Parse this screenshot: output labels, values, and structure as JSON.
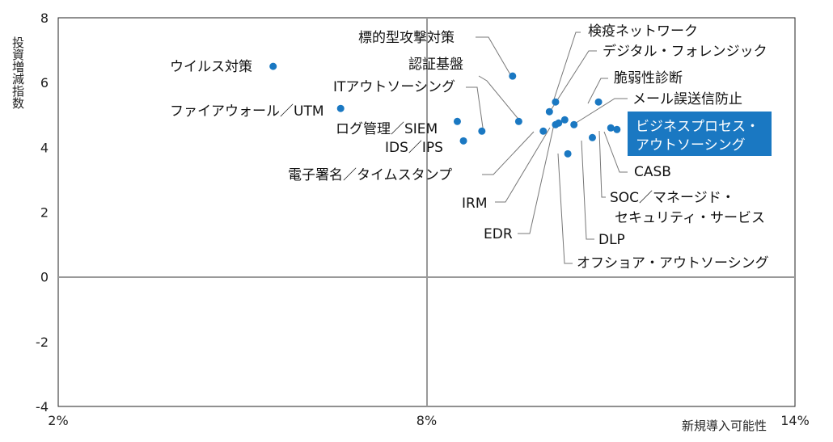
{
  "chart_data": {
    "type": "scatter",
    "xlabel": "新規導入可能性",
    "ylabel": "投資増減指数",
    "xlim": [
      2,
      14
    ],
    "ylim": [
      -4,
      8
    ],
    "x_ticks": [
      "2%",
      "8%",
      "14%"
    ],
    "y_ticks": [
      "-4",
      "-2",
      "0",
      "2",
      "4",
      "6",
      "8"
    ],
    "grid": false,
    "point_color": "#1a78c2",
    "highlight_color": "#1a78c2",
    "points": [
      {
        "label": "ウイルス対策",
        "x": 5.5,
        "y": 6.5
      },
      {
        "label": "ファイアウォール／UTM",
        "x": 6.6,
        "y": 5.2
      },
      {
        "label": "ログ管理／SIEM",
        "x": 8.5,
        "y": 4.8
      },
      {
        "label": "IDS／IPS",
        "x": 8.6,
        "y": 4.2
      },
      {
        "label": "ITアウトソーシング",
        "x": 8.9,
        "y": 4.5
      },
      {
        "label": "標的型攻撃対策",
        "x": 9.4,
        "y": 6.2
      },
      {
        "label": "認証基盤",
        "x": 9.5,
        "y": 4.8
      },
      {
        "label": "電子署名／タイムスタンプ",
        "x": 9.9,
        "y": 4.5
      },
      {
        "label": "検疫ネットワーク",
        "x": 10.1,
        "y": 5.4
      },
      {
        "label": "デジタル・フォレンジック",
        "x": 10.0,
        "y": 5.1
      },
      {
        "label": "IRM",
        "x": 10.1,
        "y": 4.7
      },
      {
        "label": "EDR",
        "x": 10.25,
        "y": 4.85
      },
      {
        "label": "オフショア・アウトソーシング",
        "x": 10.3,
        "y": 3.8
      },
      {
        "label": "脆弱性診断",
        "x": 10.8,
        "y": 5.4
      },
      {
        "label": "メール誤送信防止",
        "x": 10.4,
        "y": 4.7
      },
      {
        "label": "DLP",
        "x": 10.7,
        "y": 4.3
      },
      {
        "label": "SOC／マネージド・セキュリティ・サービス",
        "x": 11.0,
        "y": 4.6
      },
      {
        "label": "CASB",
        "x": 11.1,
        "y": 4.55
      },
      {
        "label": "ビジネスプロセス・アウトソーシング",
        "x": 10.15,
        "y": 4.75,
        "highlight": true
      }
    ]
  }
}
